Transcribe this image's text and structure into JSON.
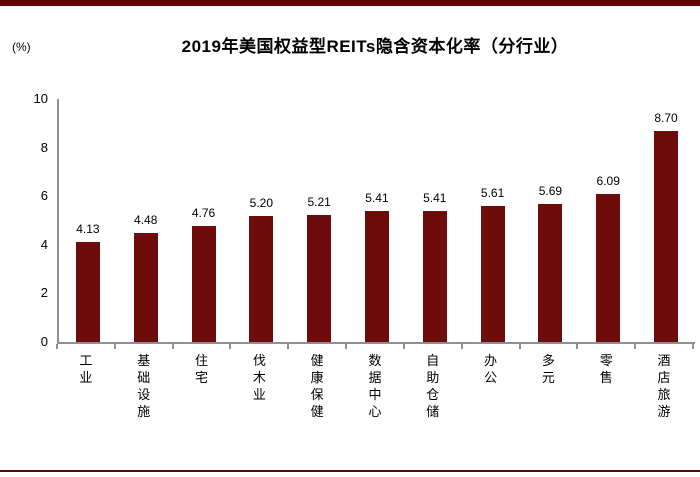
{
  "page": {
    "top_strip_color": "#5E0505",
    "bottom_line_color": "#6B0909"
  },
  "chart_data": {
    "type": "bar",
    "title": "2019年美国权益型REITs隐含资本化率（分行业）",
    "unit_label": "(%)",
    "categories": [
      "工业",
      "基础设施",
      "住宅",
      "伐木业",
      "健康保健",
      "数据中心",
      "自助仓储",
      "办公",
      "多元",
      "零售",
      "酒店旅游"
    ],
    "values": [
      4.13,
      4.48,
      4.76,
      5.2,
      5.21,
      5.41,
      5.41,
      5.61,
      5.69,
      6.09,
      8.7
    ],
    "value_labels": [
      "4.13",
      "4.48",
      "4.76",
      "5.20",
      "5.21",
      "5.41",
      "5.41",
      "5.61",
      "5.69",
      "6.09",
      "8.70"
    ],
    "xlabel": "",
    "ylabel": "(%)",
    "ylim": [
      0,
      10
    ],
    "yticks": [
      0,
      2,
      4,
      6,
      8,
      10
    ],
    "grid": false,
    "legend": false,
    "bar_color": "#6E0B0B",
    "axis_color": "#8F8F8F"
  }
}
